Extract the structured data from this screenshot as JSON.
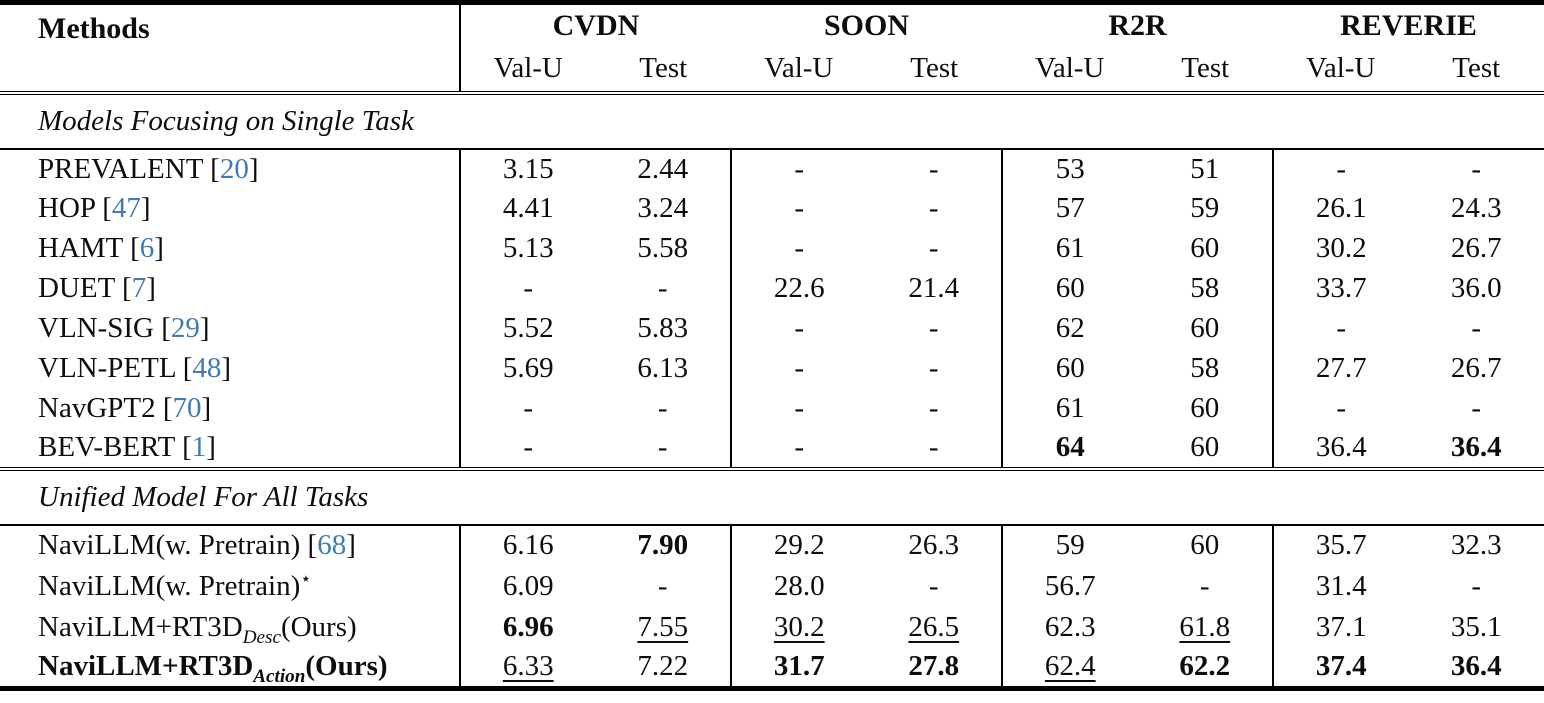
{
  "colors": {
    "citation_link": "#3f7cb6",
    "text": "#0d0d0d",
    "rule": "#000000",
    "background": "#ffffff"
  },
  "table": {
    "columns": {
      "methods": "Methods"
    },
    "groups": [
      {
        "name": "CVDN",
        "sub": [
          "Val-U",
          "Test"
        ]
      },
      {
        "name": "SOON",
        "sub": [
          "Val-U",
          "Test"
        ]
      },
      {
        "name": "R2R",
        "sub": [
          "Val-U",
          "Test"
        ]
      },
      {
        "name": "REVERIE",
        "sub": [
          "Val-U",
          "Test"
        ]
      }
    ],
    "sections": [
      {
        "title": "Models Focusing on Single Task",
        "rows": [
          {
            "method": {
              "pre": "PREVALENT",
              "cite": "20"
            },
            "cells": [
              "3.15",
              "2.44",
              "-",
              "-",
              "53",
              "51",
              "-",
              "-"
            ]
          },
          {
            "method": {
              "pre": "HOP",
              "cite": "47"
            },
            "cells": [
              "4.41",
              "3.24",
              "-",
              "-",
              "57",
              "59",
              "26.1",
              "24.3"
            ]
          },
          {
            "method": {
              "pre": "HAMT",
              "cite": "6"
            },
            "cells": [
              "5.13",
              "5.58",
              "-",
              "-",
              "61",
              "60",
              "30.2",
              "26.7"
            ]
          },
          {
            "method": {
              "pre": "DUET",
              "cite": "7"
            },
            "cells": [
              "-",
              "-",
              "22.6",
              "21.4",
              "60",
              "58",
              "33.7",
              "36.0"
            ]
          },
          {
            "method": {
              "pre": "VLN-SIG",
              "cite": "29"
            },
            "cells": [
              "5.52",
              "5.83",
              "-",
              "-",
              "62",
              "60",
              "-",
              "-"
            ]
          },
          {
            "method": {
              "pre": "VLN-PETL",
              "cite": "48"
            },
            "cells": [
              "5.69",
              "6.13",
              "-",
              "-",
              "60",
              "58",
              "27.7",
              "26.7"
            ]
          },
          {
            "method": {
              "pre": "NavGPT2",
              "cite": "70"
            },
            "cells": [
              "-",
              "-",
              "-",
              "-",
              "61",
              "60",
              "-",
              "-"
            ]
          },
          {
            "method": {
              "pre": "BEV-BERT",
              "cite": "1"
            },
            "cells": [
              "-",
              "-",
              "-",
              "-",
              {
                "v": "64",
                "b": true
              },
              "60",
              "36.4",
              {
                "v": "36.4",
                "b": true
              }
            ]
          }
        ]
      },
      {
        "title": "Unified Model For All Tasks",
        "rows": [
          {
            "method": {
              "pre": "NaviLLM(w. Pretrain)",
              "cite": "68"
            },
            "cells": [
              "6.16",
              {
                "v": "7.90",
                "b": true
              },
              "29.2",
              "26.3",
              "59",
              "60",
              "35.7",
              "32.3"
            ]
          },
          {
            "method": {
              "pre": "NaviLLM(w. Pretrain)",
              "star": true
            },
            "cells": [
              "6.09",
              "-",
              "28.0",
              "-",
              "56.7",
              "-",
              "31.4",
              "-"
            ]
          },
          {
            "method": {
              "pre": "NaviLLM+RT3D",
              "sub": "Desc",
              "post": "(Ours)"
            },
            "cells": [
              {
                "v": "6.96",
                "b": true
              },
              {
                "v": "7.55",
                "u": true
              },
              {
                "v": "30.2",
                "u": true
              },
              {
                "v": "26.5",
                "u": true
              },
              "62.3",
              {
                "v": "61.8",
                "u": true
              },
              "37.1",
              "35.1"
            ]
          },
          {
            "method": {
              "pre": "NaviLLM+RT3D",
              "sub": "Action",
              "post": "(Ours)",
              "bold": true
            },
            "cells": [
              {
                "v": "6.33",
                "u": true
              },
              "7.22",
              {
                "v": "31.7",
                "b": true
              },
              {
                "v": "27.8",
                "b": true
              },
              {
                "v": "62.4",
                "u": true
              },
              {
                "v": "62.2",
                "b": true
              },
              {
                "v": "37.4",
                "b": true
              },
              {
                "v": "36.4",
                "b": true
              }
            ]
          }
        ]
      }
    ]
  }
}
